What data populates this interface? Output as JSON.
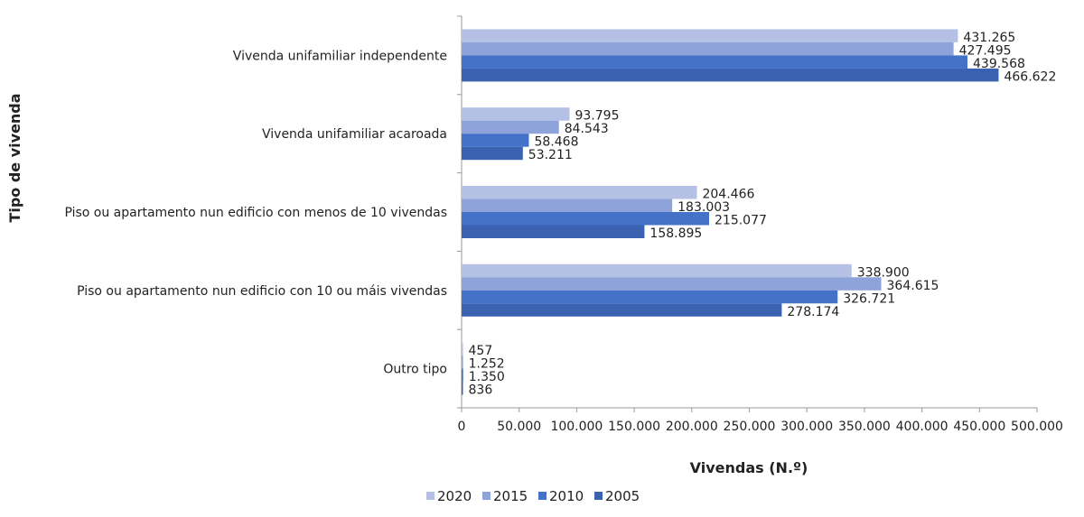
{
  "chart_data": {
    "type": "bar",
    "orientation": "horizontal",
    "title": "",
    "xlabel": "Vivendas (N.º)",
    "ylabel": "Tipo de vivenda",
    "xlim": [
      0,
      500000
    ],
    "xticks": [
      0,
      50000,
      100000,
      150000,
      200000,
      250000,
      300000,
      350000,
      400000,
      450000,
      500000
    ],
    "xtick_labels": [
      "0",
      "50.000",
      "100.000",
      "150.000",
      "200.000",
      "250.000",
      "300.000",
      "350.000",
      "400.000",
      "450.000",
      "500.000"
    ],
    "categories": [
      "Vivenda unifamiliar independente",
      "Vivenda unifamiliar acaroada",
      "Piso ou apartamento nun edificio con menos de 10 vivendas",
      "Piso ou apartamento nun edificio con 10 ou máis vivendas",
      "Outro tipo"
    ],
    "series": [
      {
        "name": "2020",
        "color": "#b4c0e4",
        "values": [
          431265,
          93795,
          204466,
          338900,
          457
        ],
        "labels": [
          "431.265",
          "93.795",
          "204.466",
          "338.900",
          "457"
        ]
      },
      {
        "name": "2015",
        "color": "#8ea3da",
        "values": [
          427495,
          84543,
          183003,
          364615,
          1252
        ],
        "labels": [
          "427.495",
          "84.543",
          "183.003",
          "364.615",
          "1.252"
        ]
      },
      {
        "name": "2010",
        "color": "#4472c8",
        "values": [
          439568,
          58468,
          215077,
          326721,
          1350
        ],
        "labels": [
          "439.568",
          "58.468",
          "215.077",
          "326.721",
          "1.350"
        ]
      },
      {
        "name": "2005",
        "color": "#3a62b0",
        "values": [
          466622,
          53211,
          158895,
          278174,
          836
        ],
        "labels": [
          "466.622",
          "53.211",
          "158.895",
          "278.174",
          "836"
        ]
      }
    ],
    "legend_position": "bottom",
    "grid": false
  }
}
